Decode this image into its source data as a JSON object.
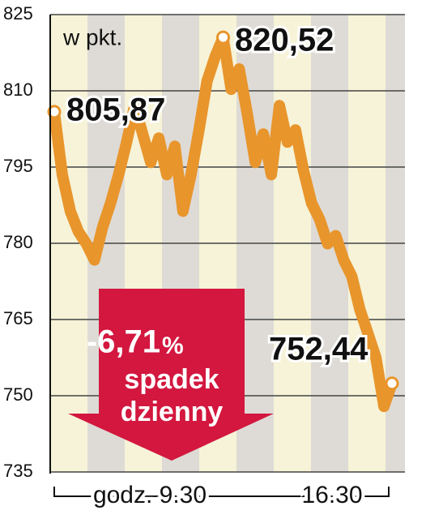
{
  "chart_data": {
    "type": "line",
    "unit_label": "w pkt.",
    "x": [
      0,
      1,
      2,
      3,
      4,
      5,
      6,
      7,
      8,
      9,
      10,
      11,
      12,
      13,
      14,
      15,
      16,
      17,
      18,
      19,
      20,
      21,
      22,
      23,
      24,
      25,
      26,
      27,
      28,
      29,
      30,
      31,
      32,
      33,
      34,
      35,
      36,
      37,
      38,
      39,
      40,
      41,
      42
    ],
    "xlim": [
      0,
      42
    ],
    "x_axis_labels": [
      "godz. 9.30",
      "16.30"
    ],
    "series": [
      {
        "color": "#e8952c",
        "values": [
          805.87,
          793.5,
          786.3,
          782.3,
          779.9,
          776.7,
          783.1,
          787.9,
          793.5,
          799.9,
          807.1,
          801.5,
          795.9,
          800.7,
          793.5,
          799.1,
          786.3,
          793.5,
          802.3,
          811.9,
          816.7,
          820.52,
          810.3,
          814.3,
          805.5,
          795.9,
          801.5,
          793.5,
          807.1,
          799.9,
          802.3,
          794.3,
          787.9,
          784.7,
          779.9,
          781.5,
          776.7,
          773.5,
          767.0,
          762.3,
          757.5,
          747.9,
          752.44
        ],
        "value_labels": {
          "0": "805,87",
          "21": "820,52",
          "42": "752,44"
        }
      }
    ],
    "ylim": [
      735,
      825
    ],
    "yticks": [
      735,
      750,
      765,
      780,
      795,
      810,
      825
    ],
    "grid": true,
    "change_value": "-6,71",
    "change_unit": "%",
    "change_text": [
      "spadek",
      "dzienny"
    ]
  }
}
